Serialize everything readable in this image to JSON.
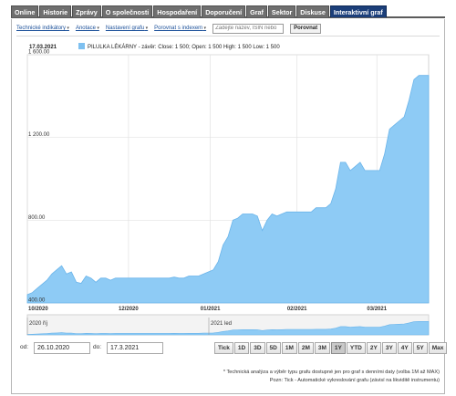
{
  "tabs": [
    {
      "label": "Online",
      "active": false
    },
    {
      "label": "Historie",
      "active": false
    },
    {
      "label": "Zprávy",
      "active": false
    },
    {
      "label": "O společnosti",
      "active": false
    },
    {
      "label": "Hospodaření",
      "active": false
    },
    {
      "label": "Doporučení",
      "active": false
    },
    {
      "label": "Graf",
      "active": false
    },
    {
      "label": "Sektor",
      "active": false
    },
    {
      "label": "Diskuse",
      "active": false
    },
    {
      "label": "Interaktivní graf",
      "active": true
    }
  ],
  "toolbar": {
    "indicators": "Technické indikátory",
    "annotations": "Anotace",
    "settings": "Nastavení grafu",
    "compare_index": "Porovnat s indexem",
    "search_placeholder": "Zadejte název, ISIN nebo",
    "compare_button": "Porovnat"
  },
  "legend": {
    "date": "17.03.2021",
    "text": "PILULKA LÉKÁRNY - závěr: Close: 1 500; Open: 1 500 High: 1 500 Low: 1 500",
    "color": "#7ec0f0"
  },
  "chart_data": {
    "type": "area",
    "series_name": "PILULKA LÉKÁRNY",
    "y_ticks": [
      "1 600.00",
      "1 200.00",
      "800.00",
      "400.00"
    ],
    "ylim": [
      400,
      1600
    ],
    "x_ticks": [
      "10/2020",
      "12/2020",
      "01/2021",
      "02/2021",
      "03/2021"
    ],
    "x_tick_positions": [
      0.0,
      0.252,
      0.456,
      0.672,
      0.871
    ],
    "grid": true,
    "values": [
      440,
      450,
      470,
      490,
      510,
      540,
      560,
      580,
      540,
      550,
      500,
      495,
      530,
      520,
      500,
      520,
      520,
      510,
      520,
      520,
      520,
      520,
      520,
      520,
      520,
      520,
      520,
      520,
      520,
      520,
      525,
      520,
      520,
      530,
      530,
      530,
      540,
      550,
      560,
      600,
      680,
      720,
      800,
      810,
      830,
      830,
      830,
      820,
      750,
      800,
      830,
      820,
      830,
      840,
      840,
      840,
      840,
      840,
      840,
      860,
      860,
      860,
      880,
      950,
      1080,
      1080,
      1040,
      1060,
      1080,
      1040,
      1040,
      1040,
      1040,
      1120,
      1240,
      1260,
      1280,
      1300,
      1380,
      1480,
      1500,
      1500,
      1500
    ],
    "navigator_labels": [
      "2020 říj",
      "2021 led"
    ],
    "fill_color": "#8ecbf5",
    "line_color": "#6ab4ea"
  },
  "range": {
    "from_label": "od:",
    "from_value": "26.10.2020",
    "to_label": "do:",
    "to_value": "17.3.2021"
  },
  "zoom_buttons": [
    {
      "label": "Tick",
      "active": false
    },
    {
      "label": "1D",
      "active": false
    },
    {
      "label": "3D",
      "active": false
    },
    {
      "label": "5D",
      "active": false
    },
    {
      "label": "1M",
      "active": false
    },
    {
      "label": "2M",
      "active": false
    },
    {
      "label": "3M",
      "active": false
    },
    {
      "label": "1Y",
      "active": true
    },
    {
      "label": "YTD",
      "active": false
    },
    {
      "label": "2Y",
      "active": false
    },
    {
      "label": "3Y",
      "active": false
    },
    {
      "label": "4Y",
      "active": false
    },
    {
      "label": "5Y",
      "active": false
    },
    {
      "label": "Max",
      "active": false
    }
  ],
  "notes": {
    "line1": "* Technická analýza a výběr typu grafu dostupné jen pro graf s denními daty (volba 1M až MAX)",
    "line2": "Pozn: Tick - Automatické vykreslování grafu (závisí na likviditě instrumentu)"
  }
}
